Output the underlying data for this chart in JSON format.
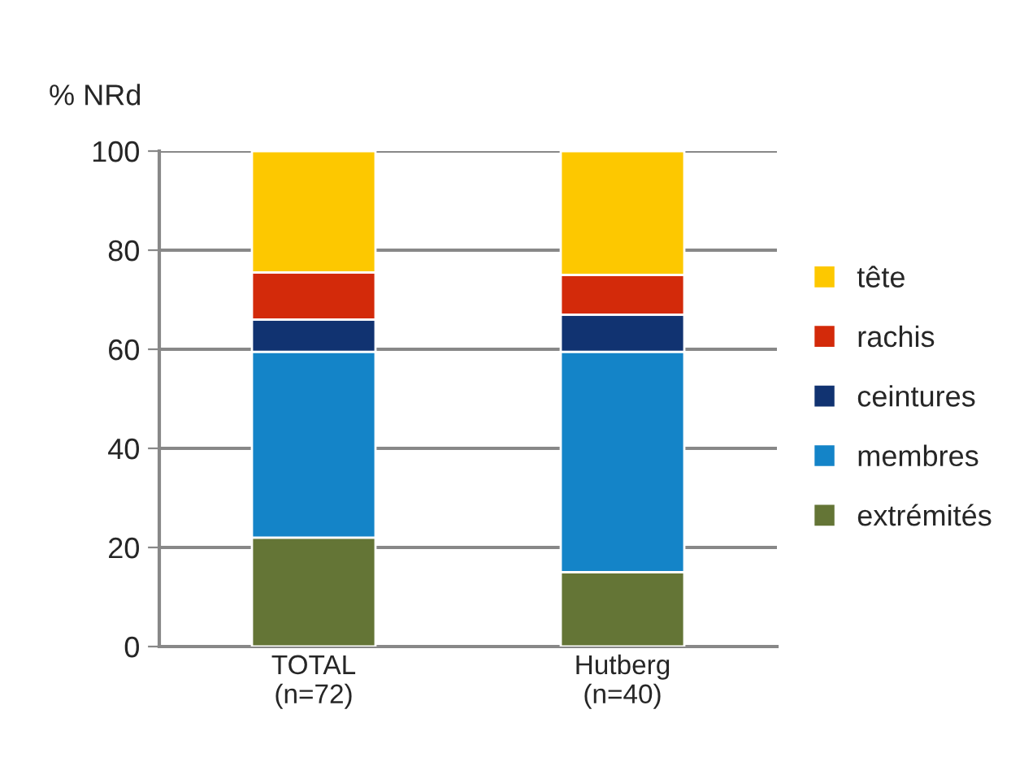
{
  "chart_data": {
    "type": "bar",
    "stacked": true,
    "ylabel": "% NRd",
    "categories": [
      "TOTAL\n(n=72)",
      "Hutberg\n(n=40)"
    ],
    "series": [
      {
        "name": "extrémités",
        "color": "#647536",
        "values": [
          22,
          15
        ]
      },
      {
        "name": "membres",
        "color": "#1484c8",
        "values": [
          37.5,
          44.5
        ]
      },
      {
        "name": "ceintures",
        "color": "#113371",
        "values": [
          6.5,
          7.5
        ]
      },
      {
        "name": "rachis",
        "color": "#d32a0a",
        "values": [
          9.5,
          8
        ]
      },
      {
        "name": "tête",
        "color": "#fdc800",
        "values": [
          24.5,
          25
        ]
      }
    ],
    "ylim": [
      0,
      100
    ],
    "yticks": [
      0,
      20,
      40,
      60,
      80,
      100
    ],
    "grid": "y",
    "legend": "right"
  }
}
